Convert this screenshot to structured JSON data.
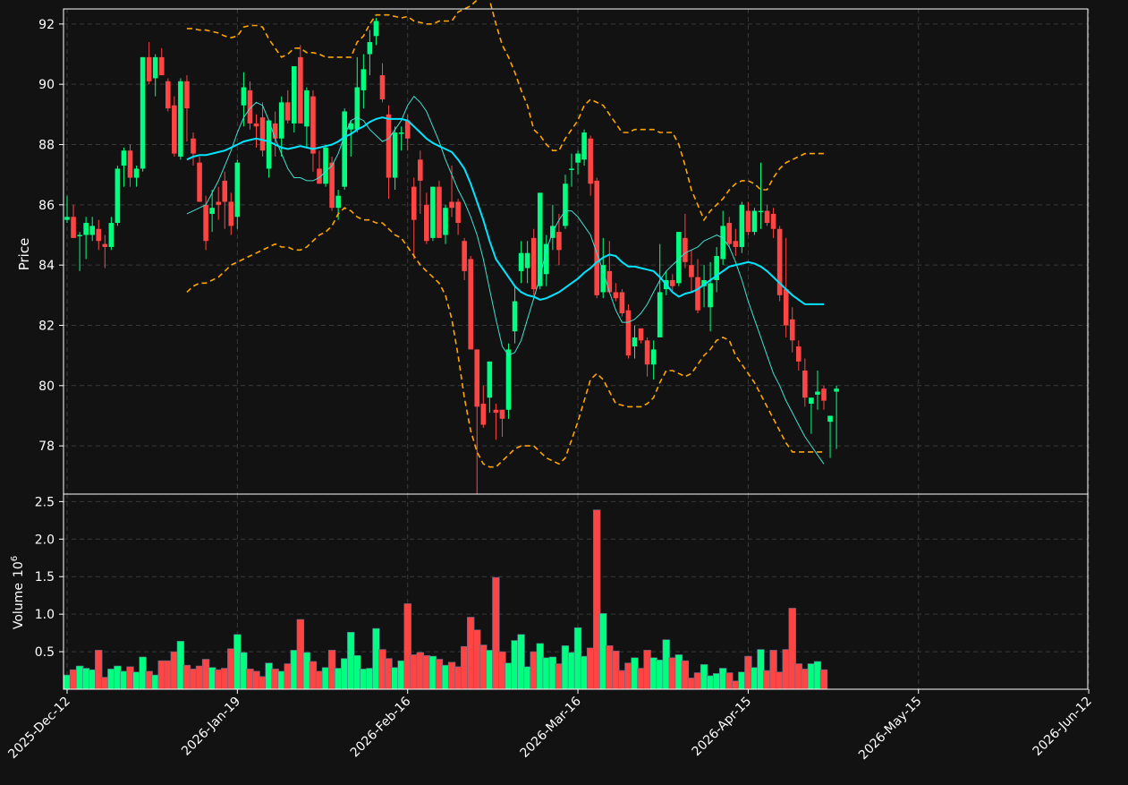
{
  "chart_data": {
    "type": "candlestick",
    "colors": {
      "background": "#121212",
      "up": "#00ff80",
      "down": "#ff4444",
      "grid": "#3a3a3a",
      "frame": "#ffffff",
      "band": "#ffa500",
      "ma_slow": "#00e5ff",
      "ma_fast": "#40e0d0"
    },
    "price_panel": {
      "ylabel": "Price",
      "ylim": [
        76.4,
        92.5
      ],
      "yticks": [
        78,
        80,
        82,
        84,
        86,
        88,
        90,
        92
      ],
      "grid": true
    },
    "volume_panel": {
      "ylabel": "Volume",
      "ylabel_exponent": "10",
      "ylabel_exponent_power": "6",
      "ylim": [
        0,
        2.6
      ],
      "yticks": [
        0.5,
        1.0,
        1.5,
        2.0,
        2.5
      ],
      "ytick_labels": [
        "0.5",
        "1.0",
        "1.5",
        "2.0",
        "2.5"
      ],
      "unit": "millions",
      "grid": true
    },
    "x_axis": {
      "tick_labels": [
        "2025-Dec-12",
        "2026-Jan-19",
        "2026-Feb-16",
        "2026-Mar-16",
        "2026-Apr-15",
        "2026-May-15",
        "2026-Jun-12"
      ],
      "tick_bar_index": [
        0,
        27,
        54,
        81,
        108,
        135,
        162
      ]
    },
    "candles_ohlc": [
      [
        85.5,
        86.3,
        85.4,
        85.6
      ],
      [
        85.6,
        86.0,
        84.9,
        84.9
      ],
      [
        85.0,
        85.1,
        83.8,
        85.0
      ],
      [
        85.0,
        85.6,
        84.2,
        85.4
      ],
      [
        85.0,
        85.6,
        84.8,
        85.3
      ],
      [
        85.2,
        85.5,
        84.5,
        84.8
      ],
      [
        84.7,
        85.0,
        83.9,
        84.6
      ],
      [
        84.6,
        85.6,
        84.5,
        85.4
      ],
      [
        85.4,
        87.3,
        85.3,
        87.2
      ],
      [
        87.3,
        87.9,
        86.6,
        87.8
      ],
      [
        87.8,
        88.0,
        86.6,
        86.9
      ],
      [
        86.9,
        87.3,
        86.6,
        87.2
      ],
      [
        87.2,
        90.9,
        87.1,
        90.9
      ],
      [
        90.9,
        91.4,
        90.0,
        90.1
      ],
      [
        90.2,
        91.0,
        89.6,
        90.9
      ],
      [
        90.9,
        91.2,
        90.4,
        90.3
      ],
      [
        90.1,
        90.2,
        89.1,
        89.2
      ],
      [
        89.3,
        89.6,
        87.6,
        87.7
      ],
      [
        87.6,
        90.2,
        87.5,
        90.1
      ],
      [
        90.1,
        90.3,
        88.1,
        89.2
      ],
      [
        88.2,
        88.4,
        87.3,
        87.7
      ],
      [
        87.4,
        87.6,
        86.1,
        86.1
      ],
      [
        86.0,
        86.3,
        84.5,
        84.8
      ],
      [
        85.7,
        86.5,
        85.1,
        85.9
      ],
      [
        86.1,
        86.6,
        85.5,
        86.0
      ],
      [
        86.8,
        87.1,
        85.2,
        86.1
      ],
      [
        86.1,
        86.4,
        85.0,
        85.3
      ],
      [
        85.6,
        87.5,
        85.2,
        87.4
      ],
      [
        89.3,
        90.4,
        88.6,
        89.9
      ],
      [
        89.8,
        90.1,
        88.5,
        88.7
      ],
      [
        88.7,
        89.0,
        87.9,
        88.6
      ],
      [
        88.9,
        89.4,
        87.6,
        87.8
      ],
      [
        87.2,
        88.6,
        86.9,
        88.8
      ],
      [
        88.7,
        89.1,
        87.6,
        88.2
      ],
      [
        88.2,
        89.6,
        87.6,
        89.4
      ],
      [
        89.4,
        89.8,
        88.7,
        88.8
      ],
      [
        88.7,
        90.3,
        88.4,
        90.6
      ],
      [
        90.9,
        91.3,
        88.7,
        88.7
      ],
      [
        88.6,
        89.9,
        87.9,
        89.8
      ],
      [
        89.6,
        89.8,
        87.1,
        87.7
      ],
      [
        87.2,
        87.8,
        86.8,
        86.7
      ],
      [
        86.7,
        88.0,
        86.6,
        87.9
      ],
      [
        87.4,
        87.6,
        85.8,
        85.9
      ],
      [
        85.9,
        86.5,
        85.5,
        86.3
      ],
      [
        86.6,
        89.2,
        86.5,
        89.1
      ],
      [
        88.5,
        88.8,
        87.6,
        88.7
      ],
      [
        88.5,
        90.9,
        88.4,
        89.9
      ],
      [
        89.8,
        91.0,
        89.2,
        90.5
      ],
      [
        91.0,
        91.8,
        90.3,
        91.4
      ],
      [
        91.6,
        92.2,
        91.3,
        92.1
      ],
      [
        90.3,
        90.7,
        89.4,
        89.5
      ],
      [
        89.0,
        89.3,
        86.2,
        86.9
      ],
      [
        86.9,
        88.6,
        86.5,
        88.4
      ],
      [
        88.4,
        88.6,
        87.8,
        88.4
      ],
      [
        88.8,
        89.0,
        87.8,
        88.2
      ],
      [
        86.6,
        86.9,
        84.2,
        85.5
      ],
      [
        87.5,
        87.8,
        85.7,
        86.8
      ],
      [
        86.0,
        86.4,
        84.7,
        84.8
      ],
      [
        84.9,
        86.1,
        84.8,
        86.6
      ],
      [
        86.6,
        86.8,
        84.9,
        84.9
      ],
      [
        85.0,
        86.0,
        84.7,
        85.9
      ],
      [
        86.1,
        87.3,
        85.6,
        85.9
      ],
      [
        86.1,
        86.2,
        85.0,
        85.4
      ],
      [
        84.8,
        84.9,
        83.5,
        83.8
      ],
      [
        84.2,
        84.3,
        81.2,
        81.2
      ],
      [
        81.2,
        79.9,
        76.4,
        79.3
      ],
      [
        79.4,
        80.0,
        78.6,
        78.7
      ],
      [
        79.6,
        80.7,
        79.1,
        80.8
      ],
      [
        79.2,
        79.4,
        78.2,
        79.1
      ],
      [
        79.2,
        79.2,
        78.3,
        78.9
      ],
      [
        79.2,
        81.4,
        78.9,
        81.2
      ],
      [
        81.8,
        83.3,
        81.4,
        82.8
      ],
      [
        83.8,
        84.8,
        83.4,
        84.4
      ],
      [
        83.9,
        84.8,
        83.4,
        84.4
      ],
      [
        84.9,
        85.2,
        83.0,
        83.2
      ],
      [
        83.3,
        86.4,
        83.2,
        86.4
      ],
      [
        83.7,
        85.0,
        83.3,
        84.7
      ],
      [
        84.9,
        86.0,
        84.5,
        85.3
      ],
      [
        85.1,
        85.7,
        84.0,
        84.5
      ],
      [
        85.3,
        87.0,
        85.2,
        86.7
      ],
      [
        87.2,
        87.7,
        86.6,
        87.2
      ],
      [
        87.4,
        87.8,
        87.0,
        87.7
      ],
      [
        87.5,
        88.5,
        87.3,
        88.4
      ],
      [
        88.2,
        88.3,
        86.3,
        86.7
      ],
      [
        86.8,
        86.9,
        82.9,
        83.0
      ],
      [
        83.1,
        84.9,
        82.9,
        84.0
      ],
      [
        83.8,
        84.8,
        83.1,
        83.1
      ],
      [
        83.1,
        83.4,
        82.8,
        82.9
      ],
      [
        83.1,
        83.2,
        82.3,
        82.4
      ],
      [
        82.5,
        82.7,
        80.9,
        81.0
      ],
      [
        81.3,
        82.0,
        80.9,
        81.6
      ],
      [
        81.9,
        81.7,
        81.4,
        81.5
      ],
      [
        81.5,
        81.6,
        80.3,
        80.7
      ],
      [
        80.7,
        81.5,
        80.2,
        81.2
      ],
      [
        81.6,
        84.7,
        81.6,
        83.1
      ],
      [
        83.2,
        83.8,
        83.0,
        83.5
      ],
      [
        83.5,
        83.7,
        83.1,
        83.3
      ],
      [
        83.4,
        85.1,
        83.3,
        85.1
      ],
      [
        84.9,
        85.7,
        83.9,
        84.1
      ],
      [
        84.0,
        84.5,
        83.1,
        83.6
      ],
      [
        83.6,
        84.2,
        82.4,
        82.5
      ],
      [
        83.3,
        84.0,
        82.6,
        83.5
      ],
      [
        82.6,
        84.1,
        81.8,
        83.4
      ],
      [
        83.5,
        84.6,
        83.1,
        84.3
      ],
      [
        84.2,
        85.8,
        84.0,
        85.3
      ],
      [
        85.4,
        85.6,
        84.6,
        84.7
      ],
      [
        84.8,
        85.2,
        84.3,
        84.6
      ],
      [
        84.6,
        86.1,
        84.4,
        86.0
      ],
      [
        85.8,
        86.1,
        85.0,
        85.1
      ],
      [
        85.1,
        85.9,
        85.0,
        85.8
      ],
      [
        85.8,
        87.4,
        85.2,
        85.8
      ],
      [
        85.8,
        86.0,
        85.3,
        85.4
      ],
      [
        85.7,
        85.9,
        84.9,
        85.2
      ],
      [
        85.2,
        85.3,
        82.8,
        83.0
      ],
      [
        83.2,
        84.9,
        81.6,
        82.0
      ],
      [
        82.2,
        82.6,
        81.1,
        81.5
      ],
      [
        81.3,
        81.5,
        80.5,
        80.8
      ],
      [
        80.5,
        80.9,
        79.3,
        79.6
      ],
      [
        79.4,
        79.6,
        78.4,
        79.6
      ],
      [
        79.7,
        80.5,
        79.2,
        79.8
      ],
      [
        79.9,
        80.0,
        79.2,
        79.5
      ],
      [
        78.8,
        79.0,
        77.6,
        79.0
      ],
      [
        79.8,
        80.0,
        77.9,
        79.9
      ]
    ],
    "volume_millions": [
      0.19,
      0.26,
      0.31,
      0.28,
      0.26,
      0.52,
      0.16,
      0.27,
      0.31,
      0.24,
      0.3,
      0.23,
      0.43,
      0.24,
      0.19,
      0.38,
      0.38,
      0.5,
      0.64,
      0.32,
      0.27,
      0.31,
      0.4,
      0.29,
      0.26,
      0.28,
      0.54,
      0.73,
      0.49,
      0.27,
      0.24,
      0.17,
      0.35,
      0.27,
      0.24,
      0.34,
      0.52,
      0.93,
      0.49,
      0.37,
      0.24,
      0.29,
      0.52,
      0.28,
      0.41,
      0.76,
      0.45,
      0.27,
      0.28,
      0.81,
      0.53,
      0.41,
      0.29,
      0.38,
      1.14,
      0.46,
      0.49,
      0.45,
      0.44,
      0.4,
      0.32,
      0.36,
      0.3,
      0.57,
      0.96,
      0.79,
      0.59,
      0.52,
      1.49,
      0.5,
      0.35,
      0.65,
      0.73,
      0.3,
      0.5,
      0.61,
      0.42,
      0.43,
      0.34,
      0.58,
      0.49,
      0.82,
      0.44,
      0.55,
      2.39,
      1.01,
      0.58,
      0.51,
      0.25,
      0.35,
      0.42,
      0.28,
      0.52,
      0.42,
      0.39,
      0.66,
      0.42,
      0.46,
      0.38,
      0.15,
      0.22,
      0.33,
      0.18,
      0.21,
      0.28,
      0.22,
      0.11,
      0.23,
      0.44,
      0.29,
      0.53,
      0.25,
      0.52,
      0.23,
      0.53,
      1.08,
      0.34,
      0.27,
      0.34,
      0.37,
      0.26
    ],
    "bollinger_upper": [
      null,
      null,
      null,
      null,
      null,
      null,
      null,
      null,
      null,
      null,
      null,
      null,
      null,
      null,
      null,
      null,
      null,
      null,
      null,
      91.85,
      91.85,
      91.8,
      91.8,
      91.75,
      91.7,
      91.6,
      91.55,
      91.6,
      91.9,
      91.95,
      91.95,
      91.9,
      91.5,
      91.2,
      90.9,
      91.0,
      91.2,
      91.2,
      91.05,
      91.05,
      91.0,
      90.9,
      90.9,
      90.9,
      90.9,
      90.9,
      91.4,
      91.6,
      92.0,
      92.3,
      92.3,
      92.3,
      92.25,
      92.2,
      92.25,
      92.1,
      92.05,
      92.0,
      92.0,
      92.1,
      92.1,
      92.1,
      92.4,
      92.5,
      92.6,
      92.8,
      93.0,
      92.8,
      92.0,
      91.3,
      90.9,
      90.4,
      89.8,
      89.3,
      88.5,
      88.3,
      88.0,
      87.8,
      87.8,
      88.2,
      88.5,
      88.8,
      89.3,
      89.5,
      89.4,
      89.3,
      89.0,
      88.7,
      88.4,
      88.4,
      88.5,
      88.5,
      88.5,
      88.5,
      88.4,
      88.4,
      88.4,
      88.0,
      87.3,
      86.5,
      86.0,
      85.5,
      85.8,
      86.0,
      86.2,
      86.5,
      86.7,
      86.8,
      86.8,
      86.7,
      86.5,
      86.5,
      86.9,
      87.2,
      87.4,
      87.5,
      87.6,
      87.7,
      87.7,
      87.7,
      87.7
    ],
    "bollinger_lower": [
      null,
      null,
      null,
      null,
      null,
      null,
      null,
      null,
      null,
      null,
      null,
      null,
      null,
      null,
      null,
      null,
      null,
      null,
      null,
      83.1,
      83.3,
      83.4,
      83.4,
      83.5,
      83.6,
      83.8,
      84.0,
      84.1,
      84.2,
      84.3,
      84.4,
      84.5,
      84.6,
      84.7,
      84.6,
      84.6,
      84.5,
      84.5,
      84.6,
      84.8,
      85.0,
      85.1,
      85.3,
      85.7,
      85.9,
      85.8,
      85.6,
      85.5,
      85.5,
      85.4,
      85.4,
      85.2,
      85.0,
      84.9,
      84.6,
      84.3,
      84.0,
      83.8,
      83.6,
      83.4,
      83.0,
      82.2,
      81.0,
      79.6,
      78.5,
      77.8,
      77.4,
      77.3,
      77.3,
      77.5,
      77.7,
      77.9,
      78.0,
      78.0,
      78.0,
      77.8,
      77.6,
      77.5,
      77.4,
      77.6,
      78.2,
      78.8,
      79.5,
      80.2,
      80.4,
      80.2,
      79.8,
      79.4,
      79.35,
      79.3,
      79.3,
      79.3,
      79.4,
      79.6,
      80.1,
      80.5,
      80.5,
      80.4,
      80.3,
      80.4,
      80.7,
      81.0,
      81.2,
      81.5,
      81.6,
      81.5,
      81.0,
      80.7,
      80.4,
      80.1,
      79.7,
      79.3,
      78.9,
      78.5,
      78.1,
      77.8,
      77.8,
      77.8,
      77.8,
      77.8,
      77.8
    ],
    "ma_slow": [
      null,
      null,
      null,
      null,
      null,
      null,
      null,
      null,
      null,
      null,
      null,
      null,
      null,
      null,
      null,
      null,
      null,
      null,
      null,
      87.5,
      87.6,
      87.65,
      87.65,
      87.7,
      87.75,
      87.8,
      87.9,
      88.0,
      88.1,
      88.15,
      88.2,
      88.15,
      88.1,
      88.0,
      87.9,
      87.85,
      87.9,
      87.95,
      87.9,
      87.85,
      87.9,
      87.95,
      88.0,
      88.1,
      88.25,
      88.35,
      88.5,
      88.6,
      88.75,
      88.85,
      88.9,
      88.85,
      88.85,
      88.85,
      88.8,
      88.6,
      88.4,
      88.2,
      88.05,
      87.95,
      87.85,
      87.75,
      87.5,
      87.2,
      86.7,
      86.1,
      85.5,
      84.8,
      84.2,
      83.9,
      83.6,
      83.3,
      83.1,
      83.0,
      82.95,
      82.85,
      82.9,
      83.0,
      83.1,
      83.25,
      83.4,
      83.55,
      83.75,
      83.9,
      84.1,
      84.25,
      84.35,
      84.3,
      84.1,
      83.95,
      83.95,
      83.9,
      83.85,
      83.8,
      83.6,
      83.35,
      83.1,
      82.95,
      83.05,
      83.1,
      83.2,
      83.35,
      83.5,
      83.65,
      83.8,
      83.95,
      84.0,
      84.05,
      84.1,
      84.05,
      83.95,
      83.8,
      83.6,
      83.4,
      83.2,
      83.0,
      82.85,
      82.7,
      82.7,
      82.7,
      82.7
    ],
    "ma_fast": [
      null,
      null,
      null,
      null,
      null,
      null,
      null,
      null,
      null,
      null,
      null,
      null,
      null,
      null,
      null,
      null,
      null,
      null,
      null,
      85.7,
      85.8,
      85.9,
      86.0,
      86.4,
      86.8,
      87.3,
      87.8,
      88.4,
      88.9,
      89.2,
      89.4,
      89.3,
      88.8,
      88.2,
      87.7,
      87.2,
      86.9,
      86.9,
      86.8,
      86.8,
      86.9,
      87.1,
      87.3,
      87.7,
      88.3,
      88.8,
      88.9,
      88.8,
      88.5,
      88.3,
      88.1,
      88.2,
      88.5,
      88.8,
      89.3,
      89.6,
      89.4,
      89.1,
      88.6,
      88.1,
      87.5,
      87.0,
      86.5,
      86.1,
      85.6,
      85.0,
      84.2,
      83.2,
      82.2,
      81.3,
      81.0,
      81.1,
      81.5,
      82.2,
      82.9,
      83.6,
      84.5,
      85.1,
      85.5,
      85.8,
      85.8,
      85.6,
      85.3,
      85.0,
      84.4,
      83.8,
      83.1,
      82.5,
      82.1,
      82.1,
      82.2,
      82.4,
      82.7,
      83.1,
      83.5,
      83.8,
      84.0,
      84.2,
      84.4,
      84.5,
      84.6,
      84.8,
      84.9,
      85.0,
      84.9,
      84.6,
      84.1,
      83.5,
      82.8,
      82.2,
      81.6,
      81.0,
      80.4,
      80.0,
      79.5,
      79.1,
      78.7,
      78.3,
      78.0,
      77.7,
      77.4
    ]
  }
}
